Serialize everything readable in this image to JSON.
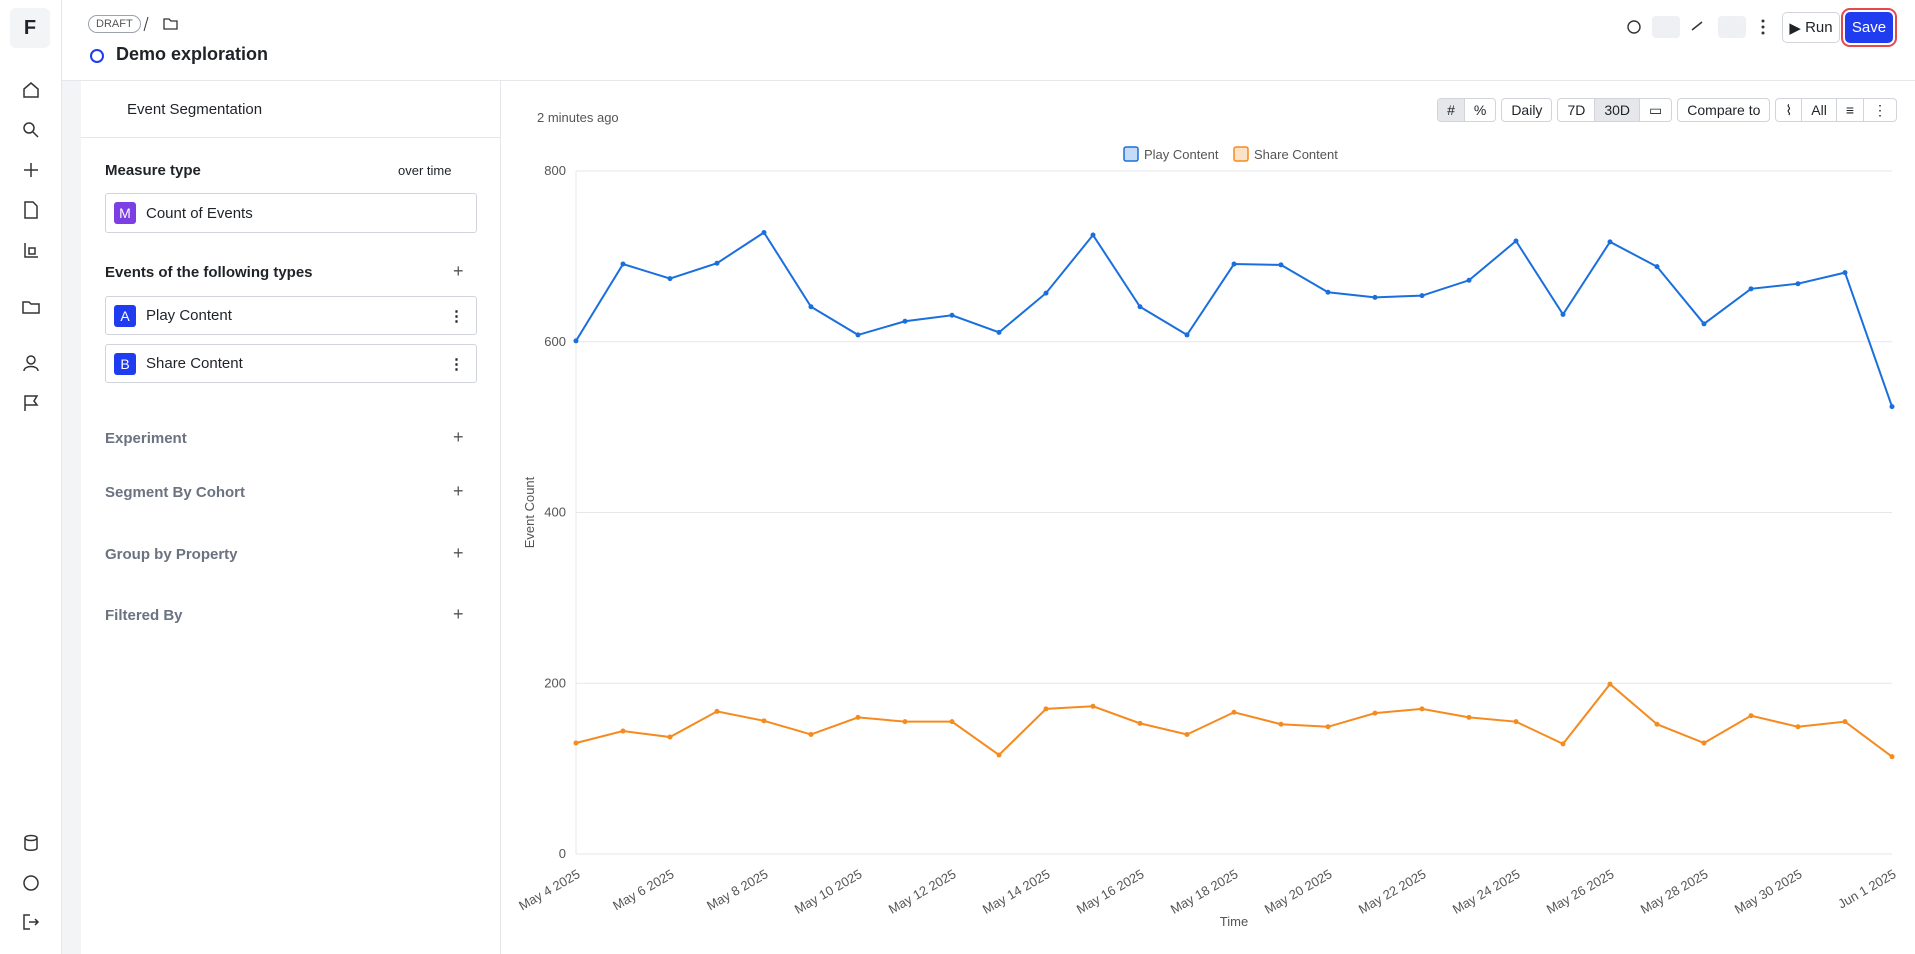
{
  "nav": {
    "logo": "F"
  },
  "header": {
    "status": "DRAFT",
    "title": "Demo exploration",
    "run": "Run",
    "save": "Save"
  },
  "panel": {
    "title": "Event Segmentation",
    "measure_label": "Measure type",
    "measure_mode": "over time",
    "measure": {
      "badge": "M",
      "name": "Count of Events"
    },
    "events_label": "Events of the following types",
    "events": [
      {
        "badge": "A",
        "name": "Play Content"
      },
      {
        "badge": "B",
        "name": "Share Content"
      }
    ],
    "sections": [
      "Experiment",
      "Segment By Cohort",
      "Group by Property",
      "Filtered By"
    ]
  },
  "toolbar": {
    "updated": "2 minutes ago",
    "interval": "Daily",
    "range_short": "7D",
    "range_long": "30D",
    "compare": "Compare to",
    "visibility": "All"
  },
  "chart_data": {
    "type": "line",
    "x_label": "Time",
    "y_label": "Event Count",
    "categories": [
      "May 4 2025",
      null,
      "May 6 2025",
      null,
      "May 8 2025",
      null,
      "May 10 2025",
      null,
      "May 12 2025",
      null,
      "May 14 2025",
      null,
      "May 16 2025",
      null,
      "May 18 2025",
      null,
      "May 20 2025",
      null,
      "May 22 2025",
      null,
      "May 24 2025",
      null,
      "May 26 2025",
      null,
      "May 28 2025",
      null,
      "May 30 2025",
      null,
      "Jun 1 2025"
    ],
    "series": [
      {
        "name": "Play Content",
        "color": "#1a6fdc",
        "values": [
          601,
          691,
          674,
          692,
          728,
          641,
          608,
          624,
          631,
          611,
          657,
          725,
          641,
          608,
          691,
          690,
          658,
          652,
          654,
          672,
          718,
          632,
          717,
          688,
          621,
          662,
          668,
          681,
          524
        ]
      },
      {
        "name": "Share Content",
        "color": "#f58a1f",
        "values": [
          130,
          144,
          137,
          167,
          156,
          140,
          160,
          155,
          155,
          116,
          170,
          173,
          153,
          140,
          166,
          152,
          149,
          165,
          170,
          160,
          155,
          129,
          199,
          152,
          130,
          162,
          149,
          155,
          114
        ]
      }
    ],
    "ylim": [
      0,
      800
    ],
    "yticks": [
      0,
      200,
      400,
      600,
      800
    ],
    "grid": true,
    "legend": "top"
  }
}
